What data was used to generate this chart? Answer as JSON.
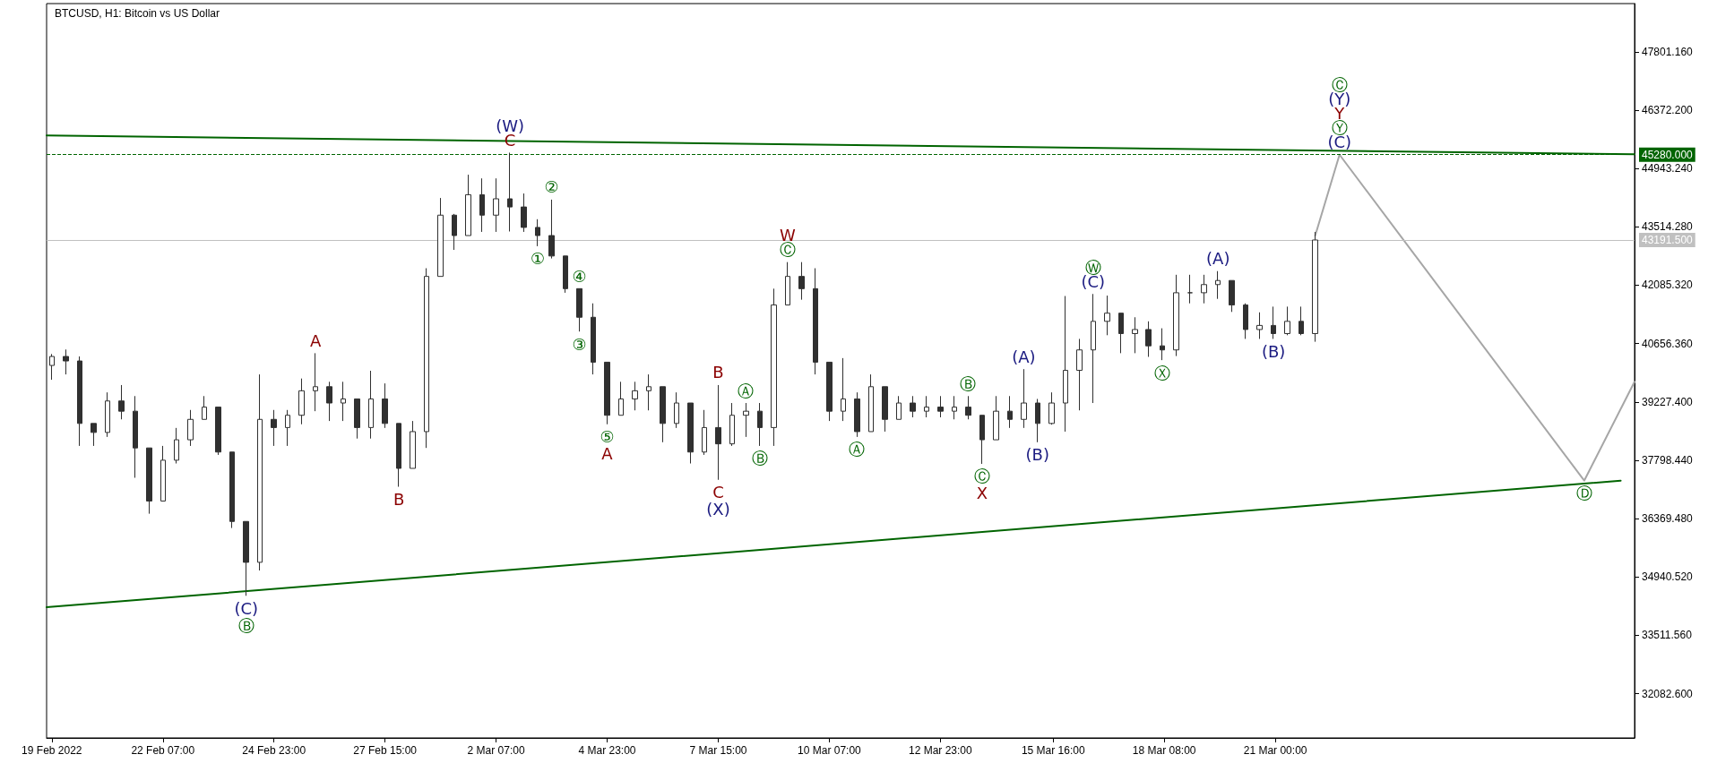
{
  "chart_data": {
    "type": "candlestick",
    "title": "BTCUSD, H1: Bitcoin vs US Dollar",
    "color": "#303030",
    "x": [
      "2022-02-19T15:00",
      "2022-02-19T23:00",
      "2022-02-20T07:00",
      "2022-02-20T15:00",
      "2022-02-20T23:00",
      "2022-02-21T07:00",
      "2022-02-21T15:00",
      "2022-02-21T23:00",
      "2022-02-22T07:00",
      "2022-02-22T15:00",
      "2022-02-22T23:00",
      "2022-02-23T07:00",
      "2022-02-23T15:00",
      "2022-02-23T23:00",
      "2022-02-24T07:00",
      "2022-02-24T15:00",
      "2022-02-24T23:00",
      "2022-02-25T07:00",
      "2022-02-25T15:00",
      "2022-02-25T23:00",
      "2022-02-26T07:00",
      "2022-02-26T15:00",
      "2022-02-26T23:00",
      "2022-02-27T07:00",
      "2022-02-27T15:00",
      "2022-02-27T23:00",
      "2022-02-28T07:00",
      "2022-02-28T15:00",
      "2022-02-28T23:00",
      "2022-03-01T07:00",
      "2022-03-01T15:00",
      "2022-03-01T23:00",
      "2022-03-02T07:00",
      "2022-03-02T15:00",
      "2022-03-02T23:00",
      "2022-03-03T07:00",
      "2022-03-03T15:00",
      "2022-03-03T23:00",
      "2022-03-04T07:00",
      "2022-03-04T15:00",
      "2022-03-04T23:00",
      "2022-03-05T07:00",
      "2022-03-05T15:00",
      "2022-03-05T23:00",
      "2022-03-06T07:00",
      "2022-03-06T15:00",
      "2022-03-06T23:00",
      "2022-03-07T07:00",
      "2022-03-07T15:00",
      "2022-03-07T23:00",
      "2022-03-08T07:00",
      "2022-03-08T15:00",
      "2022-03-08T23:00",
      "2022-03-09T07:00",
      "2022-03-09T15:00",
      "2022-03-09T23:00",
      "2022-03-10T07:00",
      "2022-03-10T15:00",
      "2022-03-10T23:00",
      "2022-03-11T07:00",
      "2022-03-11T15:00",
      "2022-03-11T23:00",
      "2022-03-12T07:00",
      "2022-03-12T15:00",
      "2022-03-12T23:00",
      "2022-03-13T07:00",
      "2022-03-13T15:00",
      "2022-03-13T23:00",
      "2022-03-14T07:00",
      "2022-03-14T15:00",
      "2022-03-14T23:00",
      "2022-03-15T07:00",
      "2022-03-15T15:00",
      "2022-03-15T23:00",
      "2022-03-16T07:00",
      "2022-03-16T15:00",
      "2022-03-16T23:00",
      "2022-03-17T07:00",
      "2022-03-17T15:00",
      "2022-03-17T23:00",
      "2022-03-18T07:00",
      "2022-03-18T15:00",
      "2022-03-18T23:00",
      "2022-03-19T07:00",
      "2022-03-19T15:00",
      "2022-03-19T23:00",
      "2022-03-20T07:00",
      "2022-03-20T15:00",
      "2022-03-20T23:00",
      "2022-03-21T07:00",
      "2022-03-21T15:00",
      "2022-03-21T23:00"
    ],
    "ohlc": [
      [
        40120,
        40400,
        39770,
        40340
      ],
      [
        40340,
        40510,
        39900,
        40230
      ],
      [
        40230,
        40340,
        38150,
        38700
      ],
      [
        38700,
        38700,
        38150,
        38480
      ],
      [
        38480,
        39460,
        38370,
        39250
      ],
      [
        39250,
        39640,
        38800,
        39000
      ],
      [
        39000,
        39370,
        37370,
        38100
      ],
      [
        38100,
        38100,
        36490,
        36800
      ],
      [
        36800,
        38150,
        36800,
        37800
      ],
      [
        37800,
        38590,
        37720,
        38300
      ],
      [
        38300,
        39030,
        38150,
        38800
      ],
      [
        38800,
        39370,
        38800,
        39100
      ],
      [
        39100,
        39100,
        37930,
        38000
      ],
      [
        38000,
        38000,
        36140,
        36300
      ],
      [
        36300,
        36300,
        34480,
        35300
      ],
      [
        35300,
        39900,
        35100,
        38800
      ],
      [
        38800,
        39030,
        38150,
        38600
      ],
      [
        38600,
        39030,
        38150,
        38900
      ],
      [
        38900,
        39800,
        38680,
        39500
      ],
      [
        39500,
        40420,
        39000,
        39600
      ],
      [
        39600,
        39720,
        38760,
        39200
      ],
      [
        39200,
        39720,
        38760,
        39300
      ],
      [
        39300,
        39300,
        38330,
        38600
      ],
      [
        38600,
        39990,
        38330,
        39300
      ],
      [
        39300,
        39680,
        38590,
        38700
      ],
      [
        38700,
        38700,
        37150,
        37600
      ],
      [
        37600,
        38760,
        37600,
        38500
      ],
      [
        38500,
        42500,
        38100,
        42300
      ],
      [
        42300,
        44220,
        42300,
        43800
      ],
      [
        43800,
        43830,
        42950,
        43300
      ],
      [
        43300,
        44790,
        43300,
        44300
      ],
      [
        44300,
        44700,
        43390,
        43800
      ],
      [
        43800,
        44700,
        43390,
        44200
      ],
      [
        44200,
        45330,
        43400,
        44000
      ],
      [
        44000,
        44330,
        43390,
        43500
      ],
      [
        43500,
        43700,
        43040,
        43300
      ],
      [
        43300,
        44180,
        42740,
        42800
      ],
      [
        42800,
        42800,
        41900,
        42000
      ],
      [
        42000,
        42000,
        40950,
        41300
      ],
      [
        41300,
        41640,
        39900,
        40200
      ],
      [
        40200,
        40200,
        38680,
        38900
      ],
      [
        38900,
        39720,
        38900,
        39300
      ],
      [
        39300,
        39720,
        39020,
        39500
      ],
      [
        39500,
        39900,
        39020,
        39600
      ],
      [
        39600,
        39600,
        38240,
        38700
      ],
      [
        38700,
        39460,
        38590,
        39200
      ],
      [
        39200,
        39200,
        37720,
        38000
      ],
      [
        38000,
        39030,
        37930,
        38600
      ],
      [
        38600,
        39640,
        37320,
        38200
      ],
      [
        38200,
        39200,
        38150,
        38900
      ],
      [
        38900,
        39200,
        38370,
        39000
      ],
      [
        39000,
        39200,
        38150,
        38600
      ],
      [
        38600,
        42000,
        38150,
        41600
      ],
      [
        41600,
        42650,
        41600,
        42300
      ],
      [
        42300,
        42650,
        41730,
        42000
      ],
      [
        42000,
        42500,
        39900,
        40200
      ],
      [
        40200,
        40200,
        38760,
        39000
      ],
      [
        39000,
        40300,
        38760,
        39300
      ],
      [
        39300,
        39460,
        38370,
        38500
      ],
      [
        38500,
        39900,
        38500,
        39600
      ],
      [
        39600,
        39600,
        38500,
        38800
      ],
      [
        38800,
        39370,
        38800,
        39200
      ],
      [
        39200,
        39370,
        38850,
        39000
      ],
      [
        39000,
        39370,
        38850,
        39100
      ],
      [
        39100,
        39370,
        38850,
        39000
      ],
      [
        39000,
        39370,
        38800,
        39100
      ],
      [
        39100,
        39370,
        38800,
        38900
      ],
      [
        38900,
        38900,
        37710,
        38300
      ],
      [
        38300,
        39370,
        38300,
        39000
      ],
      [
        39000,
        39370,
        38590,
        38800
      ],
      [
        38800,
        40030,
        38590,
        39200
      ],
      [
        39200,
        39300,
        38240,
        38700
      ],
      [
        38700,
        39460,
        38670,
        39200
      ],
      [
        39200,
        41820,
        38500,
        40000
      ],
      [
        40000,
        40770,
        39020,
        40500
      ],
      [
        40500,
        41870,
        39200,
        41200
      ],
      [
        41200,
        41830,
        40860,
        41400
      ],
      [
        41400,
        41400,
        40420,
        40900
      ],
      [
        40900,
        41300,
        40420,
        41000
      ],
      [
        41000,
        41200,
        40330,
        40600
      ],
      [
        40600,
        41030,
        40250,
        40500
      ],
      [
        40500,
        42340,
        40350,
        41900
      ],
      [
        41900,
        42340,
        41640,
        41900
      ],
      [
        41900,
        42340,
        41640,
        42100
      ],
      [
        42100,
        42430,
        41750,
        42200
      ],
      [
        42200,
        42200,
        41430,
        41600
      ],
      [
        41600,
        41640,
        40770,
        41000
      ],
      [
        41000,
        41420,
        40770,
        41100
      ],
      [
        41100,
        41560,
        40770,
        40900
      ],
      [
        40900,
        41560,
        40860,
        41200
      ],
      [
        41200,
        41560,
        40860,
        40900
      ],
      [
        40900,
        43390,
        40700,
        43191.5
      ]
    ],
    "series": [
      {
        "type": "line",
        "color": "#006400",
        "x": [
          "2022-02-19T12:00",
          "2022-03-29T15:00"
        ],
        "values": [
          45750,
          45290
        ]
      },
      {
        "type": "line",
        "color": "#006400",
        "x": [
          "2022-02-19T12:00",
          "2022-03-29T07:00"
        ],
        "values": [
          34200,
          37300
        ]
      },
      {
        "type": "line",
        "color": "#a6a6a6",
        "x": [
          "2022-03-21T23:00",
          "2022-03-22T13:00",
          "2022-03-28T10:00",
          "2022-03-29T15:00"
        ],
        "values": [
          43300,
          45280,
          37300,
          39720
        ]
      }
    ],
    "xlim": [
      "2022-02-19T12:00",
      "2022-03-29T15:00"
    ],
    "xticks": [
      {
        "value": "2022-02-19T15:00",
        "label": "19 Feb 2022"
      },
      {
        "value": "2022-02-22T07:00",
        "label": "22 Feb 07:00"
      },
      {
        "value": "2022-02-24T23:00",
        "label": "24 Feb 23:00"
      },
      {
        "value": "2022-02-27T15:00",
        "label": "27 Feb 15:00"
      },
      {
        "value": "2022-03-02T07:00",
        "label": "2 Mar 07:00"
      },
      {
        "value": "2022-03-04T23:00",
        "label": "4 Mar 23:00"
      },
      {
        "value": "2022-03-07T15:00",
        "label": "7 Mar 15:00"
      },
      {
        "value": "2022-03-10T07:00",
        "label": "10 Mar 07:00"
      },
      {
        "value": "2022-03-12T23:00",
        "label": "12 Mar 23:00"
      },
      {
        "value": "2022-03-15T16:00",
        "label": "15 Mar 16:00"
      },
      {
        "value": "2022-03-18T08:00",
        "label": "18 Mar 08:00"
      },
      {
        "value": "2022-03-21T00:00",
        "label": "21 Mar 00:00"
      }
    ],
    "ylim": [
      31000,
      48980
    ],
    "yticks": [
      {
        "value": 32082.6,
        "label": "32082.600"
      },
      {
        "value": 33511.56,
        "label": "33511.560"
      },
      {
        "value": 34940.52,
        "label": "34940.520"
      },
      {
        "value": 36369.48,
        "label": "36369.480"
      },
      {
        "value": 37798.44,
        "label": "37798.440"
      },
      {
        "value": 39227.4,
        "label": "39227.400"
      },
      {
        "value": 40656.36,
        "label": "40656.360"
      },
      {
        "value": 42085.32,
        "label": "42085.320"
      },
      {
        "value": 43514.28,
        "label": "43514.280"
      },
      {
        "value": 44943.24,
        "label": "44943.240"
      },
      {
        "value": 46372.2,
        "label": "46372.200"
      },
      {
        "value": 47801.16,
        "label": "47801.160"
      }
    ],
    "ref_lines": [
      {
        "axis": "y",
        "value": 45280,
        "label": "45280.000",
        "color": "#006400",
        "line_style": "dashed"
      },
      {
        "axis": "y",
        "value": 43191.5,
        "label": "43191.500",
        "color": "#c0c0c0",
        "line_style": "solid"
      }
    ],
    "annotations": [
      {
        "text": "(C)",
        "x": "2022-02-24T07:00",
        "y": 34480
      },
      {
        "text": "Ⓑ",
        "x": "2022-02-24T07:00",
        "y": 34480
      },
      {
        "text": "A",
        "x": "2022-02-25T23:00",
        "y": 40420
      },
      {
        "text": "B",
        "x": "2022-02-27T23:00",
        "y": 37150
      },
      {
        "text": "(W)",
        "x": "2022-03-02T15:00",
        "y": 45330
      },
      {
        "text": "C",
        "x": "2022-03-02T15:00",
        "y": 45330
      },
      {
        "text": "②",
        "x": "2022-03-03T15:00",
        "y": 44180
      },
      {
        "text": "①",
        "x": "2022-03-03T07:00",
        "y": 43040
      },
      {
        "text": "④",
        "x": "2022-03-04T07:00",
        "y": 42000
      },
      {
        "text": "③",
        "x": "2022-03-04T07:00",
        "y": 40950
      },
      {
        "text": "⑤",
        "x": "2022-03-04T23:00",
        "y": 38680
      },
      {
        "text": "A",
        "x": "2022-03-04T23:00",
        "y": 38680
      },
      {
        "text": "B",
        "x": "2022-03-07T15:00",
        "y": 39640
      },
      {
        "text": "Ⓐ",
        "x": "2022-03-08T07:00",
        "y": 39200
      },
      {
        "text": "Ⓑ",
        "x": "2022-03-08T15:00",
        "y": 38150
      },
      {
        "text": "C",
        "x": "2022-03-07T15:00",
        "y": 37320
      },
      {
        "text": "(X)",
        "x": "2022-03-07T15:00",
        "y": 37320
      },
      {
        "text": "W",
        "x": "2022-03-09T07:00",
        "y": 42650
      },
      {
        "text": "Ⓒ",
        "x": "2022-03-09T07:00",
        "y": 42650
      },
      {
        "text": "Ⓐ",
        "x": "2022-03-10T23:00",
        "y": 38370
      },
      {
        "text": "Ⓑ",
        "x": "2022-03-13T15:00",
        "y": 39370
      },
      {
        "text": "Ⓒ",
        "x": "2022-03-13T23:00",
        "y": 37710
      },
      {
        "text": "X",
        "x": "2022-03-13T23:00",
        "y": 37710
      },
      {
        "text": "(A)",
        "x": "2022-03-14T23:00",
        "y": 40030
      },
      {
        "text": "(B)",
        "x": "2022-03-15T07:00",
        "y": 38240
      },
      {
        "text": "Ⓦ",
        "x": "2022-03-16T15:00",
        "y": 41870
      },
      {
        "text": "(C)",
        "x": "2022-03-16T15:00",
        "y": 41870
      },
      {
        "text": "Ⓧ",
        "x": "2022-03-18T07:00",
        "y": 40250
      },
      {
        "text": "(A)",
        "x": "2022-03-19T15:00",
        "y": 42430
      },
      {
        "text": "(B)",
        "x": "2022-03-20T23:00",
        "y": 40770
      },
      "Ⓒ",
      {
        "text": "(Y)",
        "x": "2022-03-22T13:00",
        "y": 45280
      },
      {
        "text": "Y",
        "x": "2022-03-22T13:00",
        "y": 45280
      },
      {
        "text": "Ⓨ",
        "x": "2022-03-22T13:00",
        "y": 45280
      },
      {
        "text": "(C)",
        "x": "2022-03-22T13:00",
        "y": 45280
      },
      {
        "text": "Ⓓ",
        "x": "2022-03-28T10:00",
        "y": 37300
      }
    ]
  }
}
